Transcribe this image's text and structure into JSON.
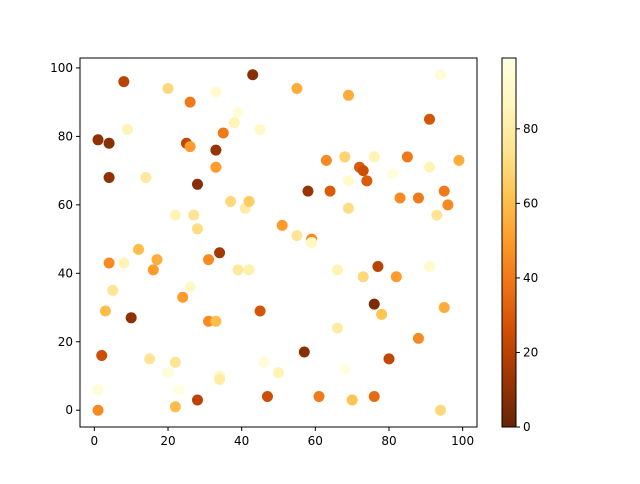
{
  "chart_data": {
    "type": "scatter",
    "x": [
      1,
      4,
      4,
      8,
      9,
      1,
      1,
      2,
      3,
      4,
      5,
      8,
      10,
      12,
      14,
      15,
      16,
      17,
      20,
      20,
      22,
      22,
      22,
      23,
      24,
      25,
      26,
      26,
      26,
      27,
      28,
      28,
      28,
      31,
      31,
      33,
      33,
      33,
      33,
      34,
      34,
      34,
      35,
      37,
      38,
      39,
      39,
      41,
      42,
      42,
      43,
      45,
      45,
      46,
      47,
      50,
      51,
      55,
      55,
      57,
      58,
      59,
      59,
      61,
      63,
      64,
      66,
      66,
      68,
      68,
      69,
      69,
      69,
      70,
      72,
      73,
      73,
      74,
      76,
      76,
      76,
      77,
      78,
      80,
      81,
      82,
      83,
      85,
      88,
      88,
      91,
      91,
      91,
      93,
      94,
      94,
      95,
      95,
      96,
      99
    ],
    "values": [
      79,
      78,
      68,
      96,
      82,
      6,
      0,
      16,
      29,
      43,
      35,
      43,
      27,
      47,
      68,
      15,
      41,
      44,
      94,
      11,
      14,
      1,
      57,
      6,
      33,
      78,
      90,
      77,
      36,
      57,
      53,
      66,
      3,
      26,
      44,
      93,
      76,
      71,
      26,
      46,
      10,
      9,
      81,
      61,
      84,
      87,
      41,
      59,
      61,
      41,
      98,
      82,
      29,
      14,
      4,
      11,
      54,
      94,
      51,
      17,
      64,
      50,
      49,
      4,
      73,
      64,
      41,
      24,
      74,
      12,
      92,
      67,
      59,
      3,
      71,
      70,
      39,
      67,
      74,
      31,
      4,
      42,
      28,
      15,
      69,
      39,
      62,
      74,
      62,
      21,
      85,
      71,
      42,
      57,
      98,
      0,
      64,
      30,
      60,
      73
    ],
    "color_values": [
      10,
      8,
      10,
      20,
      85,
      95,
      45,
      25,
      60,
      45,
      75,
      85,
      10,
      60,
      78,
      75,
      50,
      55,
      70,
      95,
      75,
      60,
      85,
      97,
      50,
      22,
      40,
      50,
      90,
      75,
      72,
      8,
      20,
      45,
      45,
      93,
      12,
      50,
      60,
      15,
      90,
      80,
      40,
      70,
      85,
      95,
      78,
      80,
      65,
      82,
      8,
      90,
      28,
      95,
      25,
      85,
      50,
      55,
      75,
      8,
      12,
      45,
      88,
      40,
      45,
      30,
      85,
      80,
      68,
      97,
      55,
      92,
      72,
      62,
      30,
      25,
      70,
      30,
      85,
      5,
      35,
      20,
      62,
      22,
      96,
      50,
      45,
      40,
      40,
      45,
      28,
      85,
      92,
      75,
      95,
      70,
      40,
      55,
      45,
      55
    ],
    "colormap": [
      "#662506",
      "#993404",
      "#cc4c02",
      "#ec7014",
      "#fe9929",
      "#fec44f",
      "#fee391",
      "#fff7bc",
      "#ffffe5"
    ],
    "xlim": [
      -3.9,
      103.9
    ],
    "ylim": [
      -4.9,
      102.9
    ],
    "xticks": [
      0,
      20,
      40,
      60,
      80,
      100
    ],
    "yticks": [
      0,
      20,
      40,
      60,
      80,
      100
    ],
    "clim": [
      0,
      99
    ],
    "colorbar_ticks": [
      0,
      20,
      40,
      60,
      80
    ]
  }
}
